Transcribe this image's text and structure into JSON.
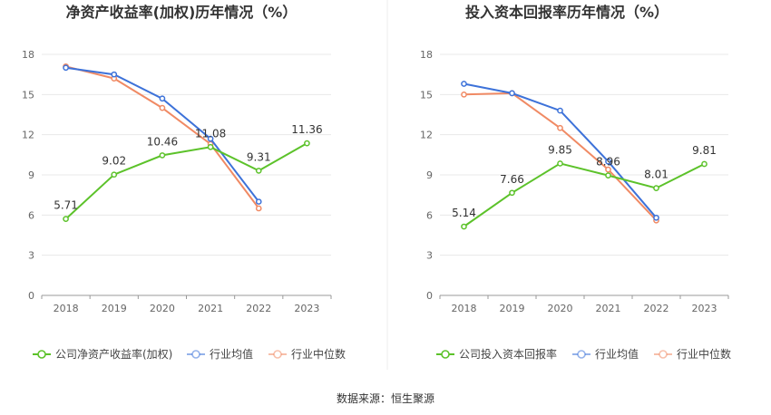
{
  "source": "数据来源：恒生聚源",
  "charts": [
    {
      "title": "净资产收益率(加权)历年情况（%）",
      "legend": [
        "公司净资产收益率(加权)",
        "行业均值",
        "行业中位数"
      ]
    },
    {
      "title": "投入资本回报率历年情况（%）",
      "legend": [
        "公司投入资本回报率",
        "行业均值",
        "行业中位数"
      ]
    }
  ],
  "chart_data": [
    {
      "type": "line",
      "title": "净资产收益率(加权)历年情况（%）",
      "categories": [
        "2018",
        "2019",
        "2020",
        "2021",
        "2022",
        "2023"
      ],
      "ylim": [
        0,
        18
      ],
      "yticks": [
        0,
        3,
        6,
        9,
        12,
        15,
        18
      ],
      "grid": true,
      "legend_position": "bottom",
      "series": [
        {
          "name": "公司净资产收益率(加权)",
          "color": "#5cc22a",
          "values": [
            5.71,
            9.02,
            10.46,
            11.08,
            9.31,
            11.36
          ],
          "labels": [
            "5.71",
            "9.02",
            "10.46",
            "11.08",
            "9.31",
            "11.36"
          ]
        },
        {
          "name": "行业均值",
          "color": "#3d72d9",
          "values": [
            17.0,
            16.5,
            14.7,
            11.7,
            7.0,
            null
          ]
        },
        {
          "name": "行业中位数",
          "color": "#f08a64",
          "values": [
            17.1,
            16.2,
            14.0,
            11.3,
            6.5,
            null
          ]
        }
      ]
    },
    {
      "type": "line",
      "title": "投入资本回报率历年情况（%）",
      "categories": [
        "2018",
        "2019",
        "2020",
        "2021",
        "2022",
        "2023"
      ],
      "ylim": [
        0,
        18
      ],
      "yticks": [
        0,
        3,
        6,
        9,
        12,
        15,
        18
      ],
      "grid": true,
      "legend_position": "bottom",
      "series": [
        {
          "name": "公司投入资本回报率",
          "color": "#5cc22a",
          "values": [
            5.14,
            7.66,
            9.85,
            8.96,
            8.01,
            9.81
          ],
          "labels": [
            "5.14",
            "7.66",
            "9.85",
            "8.96",
            "8.01",
            "9.81"
          ]
        },
        {
          "name": "行业均值",
          "color": "#3d72d9",
          "values": [
            15.8,
            15.1,
            13.8,
            10.0,
            5.8,
            null
          ]
        },
        {
          "name": "行业中位数",
          "color": "#f08a64",
          "values": [
            15.0,
            15.1,
            12.5,
            9.4,
            5.6,
            null
          ]
        }
      ]
    }
  ]
}
